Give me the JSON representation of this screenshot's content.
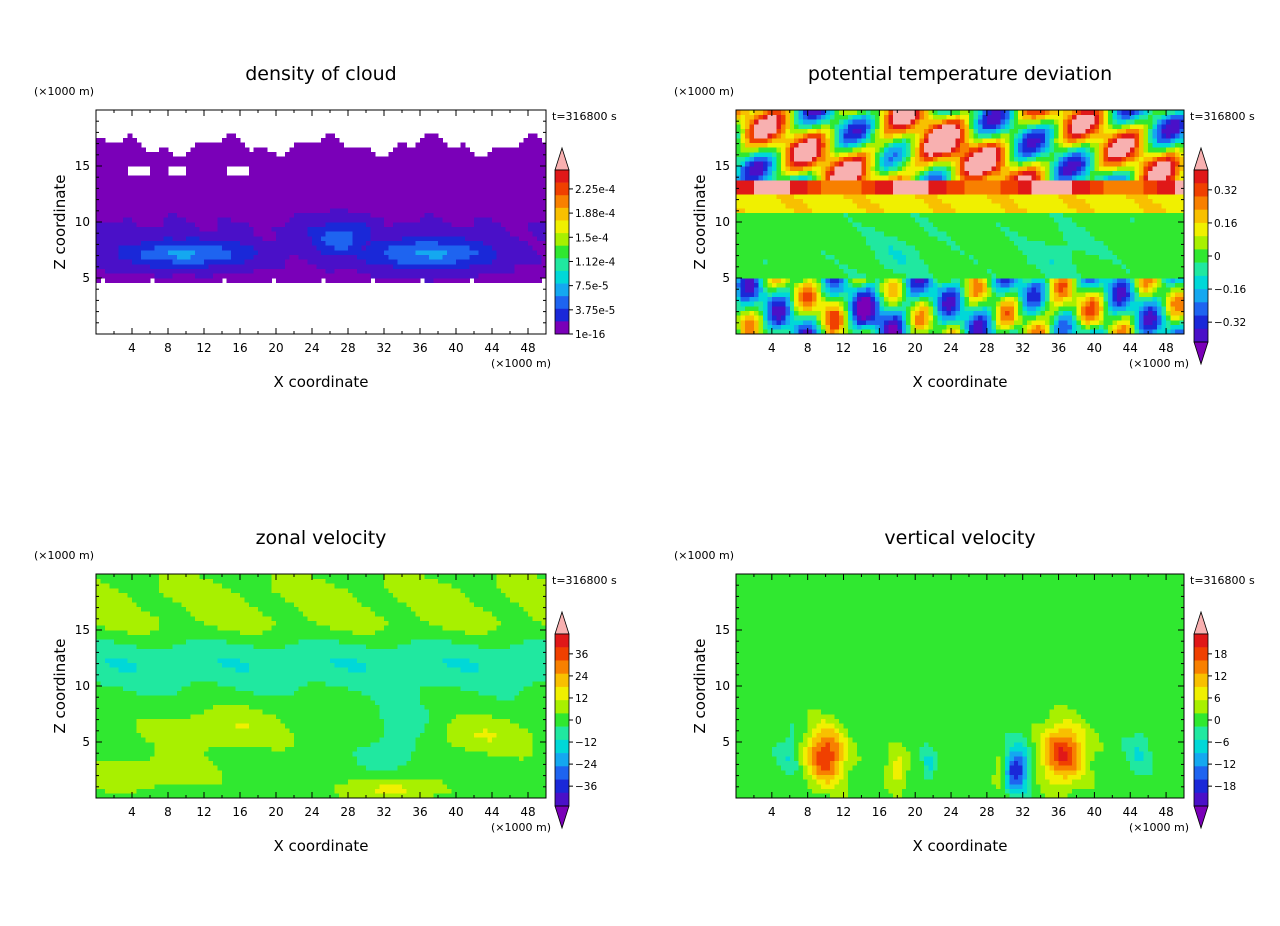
{
  "chart_data": [
    {
      "type": "heatmap",
      "title": "density of cloud",
      "xlabel": "X coordinate",
      "ylabel": "Z coordinate",
      "x_unit": "(×1000 m)",
      "y_unit": "(×1000 m)",
      "time_label": "t=316800 s",
      "xlim": [
        0,
        50
      ],
      "ylim": [
        0,
        20
      ],
      "x_ticks": [
        "4",
        "8",
        "12",
        "16",
        "20",
        "24",
        "28",
        "32",
        "36",
        "40",
        "44",
        "48"
      ],
      "y_ticks": [
        "5",
        "10",
        "15"
      ],
      "colorbar_labels": [
        "2.25e-4",
        "1.88e-4",
        "1.5e-4",
        "1.12e-4",
        "7.5e-5",
        "3.75e-5",
        "1e-16"
      ],
      "colorbar_extend": "max",
      "field": "cloud"
    },
    {
      "type": "heatmap",
      "title": "potential temperature deviation",
      "xlabel": "X coordinate",
      "ylabel": "Z coordinate",
      "x_unit": "(×1000 m)",
      "y_unit": "(×1000 m)",
      "time_label": "t=316800 s",
      "xlim": [
        0,
        50
      ],
      "ylim": [
        0,
        20
      ],
      "x_ticks": [
        "4",
        "8",
        "12",
        "16",
        "20",
        "24",
        "28",
        "32",
        "36",
        "40",
        "44",
        "48"
      ],
      "y_ticks": [
        "5",
        "10",
        "15"
      ],
      "colorbar_labels": [
        "0.32",
        "0.16",
        "0",
        "−0.16",
        "−0.32"
      ],
      "colorbar_extend": "both",
      "field": "theta"
    },
    {
      "type": "heatmap",
      "title": "zonal velocity",
      "xlabel": "X coordinate",
      "ylabel": "Z coordinate",
      "x_unit": "(×1000 m)",
      "y_unit": "(×1000 m)",
      "time_label": "t=316800 s",
      "xlim": [
        0,
        50
      ],
      "ylim": [
        0,
        20
      ],
      "x_ticks": [
        "4",
        "8",
        "12",
        "16",
        "20",
        "24",
        "28",
        "32",
        "36",
        "40",
        "44",
        "48"
      ],
      "y_ticks": [
        "5",
        "10",
        "15"
      ],
      "colorbar_labels": [
        "36",
        "24",
        "12",
        "0",
        "−12",
        "−24",
        "−36"
      ],
      "colorbar_extend": "both",
      "field": "u"
    },
    {
      "type": "heatmap",
      "title": "vertical velocity",
      "xlabel": "X coordinate",
      "ylabel": "Z coordinate",
      "x_unit": "(×1000 m)",
      "y_unit": "(×1000 m)",
      "time_label": "t=316800 s",
      "xlim": [
        0,
        50
      ],
      "ylim": [
        0,
        20
      ],
      "x_ticks": [
        "4",
        "8",
        "12",
        "16",
        "20",
        "24",
        "28",
        "32",
        "36",
        "40",
        "44",
        "48"
      ],
      "y_ticks": [
        "5",
        "10",
        "15"
      ],
      "colorbar_labels": [
        "18",
        "12",
        "6",
        "0",
        "−6",
        "−12",
        "−18"
      ],
      "colorbar_extend": "both",
      "field": "w"
    }
  ],
  "colormap": [
    "#7a00b8",
    "#4a10c8",
    "#1a28d8",
    "#1e64f0",
    "#14a8f0",
    "#00d8d8",
    "#20e8a0",
    "#30e830",
    "#a8f000",
    "#f0f000",
    "#f8c000",
    "#f88000",
    "#f04000",
    "#e01818",
    "#f8b0b0"
  ]
}
